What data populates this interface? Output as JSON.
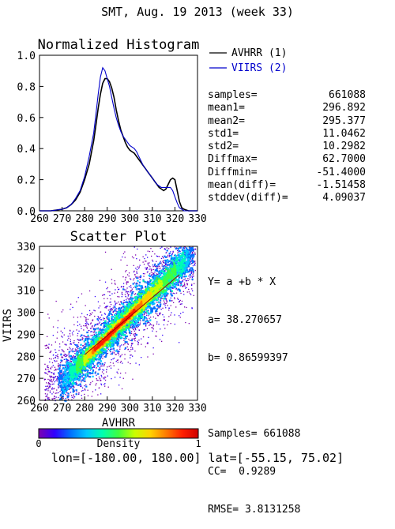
{
  "page_title": "SMT,  Aug. 19 2013 (week 33)",
  "footer": "lon=[-180.00, 180.00] lat=[-55.15, 75.02]",
  "chart_data": [
    {
      "type": "line",
      "title": "Normalized Histogram",
      "xlabel": "",
      "ylabel": "",
      "xlim": [
        260,
        330
      ],
      "ylim": [
        0.0,
        1.0
      ],
      "x_ticks": [
        "260",
        "270",
        "280",
        "290",
        "300",
        "310",
        "320",
        "330"
      ],
      "y_ticks": [
        "0.0",
        "0.2",
        "0.4",
        "0.6",
        "0.8",
        "1.0"
      ],
      "legend": [
        "AVHRR (1)",
        "VIIRS (2)"
      ],
      "series": [
        {
          "name": "AVHRR (1)",
          "color": "#000000",
          "x": [
            260,
            265,
            270,
            272,
            274,
            276,
            278,
            280,
            282,
            284,
            285,
            286,
            287,
            288,
            289,
            290,
            291,
            292,
            293,
            294,
            295,
            296,
            297,
            298,
            299,
            300,
            301,
            302,
            303,
            304,
            305,
            306,
            307,
            308,
            309,
            310,
            311,
            312,
            313,
            314,
            315,
            316,
            317,
            318,
            319,
            320,
            321,
            322,
            323,
            324,
            326,
            328,
            330
          ],
          "y": [
            0.0,
            0.0,
            0.01,
            0.02,
            0.04,
            0.07,
            0.12,
            0.2,
            0.3,
            0.45,
            0.55,
            0.66,
            0.75,
            0.82,
            0.85,
            0.85,
            0.83,
            0.79,
            0.73,
            0.65,
            0.58,
            0.52,
            0.48,
            0.44,
            0.41,
            0.39,
            0.38,
            0.37,
            0.35,
            0.33,
            0.31,
            0.29,
            0.27,
            0.25,
            0.23,
            0.21,
            0.19,
            0.17,
            0.15,
            0.14,
            0.13,
            0.14,
            0.17,
            0.2,
            0.21,
            0.2,
            0.13,
            0.06,
            0.02,
            0.01,
            0.0,
            0.0,
            0.0
          ]
        },
        {
          "name": "VIIRS (2)",
          "color": "#0000cc",
          "x": [
            260,
            265,
            270,
            272,
            274,
            276,
            278,
            280,
            282,
            284,
            285,
            286,
            287,
            288,
            289,
            290,
            291,
            292,
            293,
            294,
            295,
            296,
            297,
            298,
            299,
            300,
            301,
            302,
            303,
            304,
            305,
            306,
            307,
            308,
            309,
            310,
            311,
            312,
            313,
            314,
            315,
            316,
            317,
            318,
            319,
            320,
            321,
            322,
            323,
            324,
            326,
            328,
            330
          ],
          "y": [
            0.0,
            0.0,
            0.01,
            0.02,
            0.04,
            0.08,
            0.13,
            0.22,
            0.35,
            0.5,
            0.62,
            0.75,
            0.86,
            0.92,
            0.9,
            0.85,
            0.8,
            0.73,
            0.66,
            0.6,
            0.55,
            0.51,
            0.48,
            0.46,
            0.44,
            0.42,
            0.41,
            0.4,
            0.38,
            0.35,
            0.32,
            0.29,
            0.27,
            0.25,
            0.23,
            0.21,
            0.19,
            0.17,
            0.16,
            0.15,
            0.15,
            0.15,
            0.15,
            0.15,
            0.13,
            0.09,
            0.05,
            0.02,
            0.01,
            0.0,
            0.0,
            0.0,
            0.0
          ]
        }
      ]
    },
    {
      "type": "scatter",
      "title": "Scatter Plot",
      "xlabel": "AVHRR",
      "ylabel": "VIIRS",
      "xlim": [
        260,
        330
      ],
      "ylim": [
        260,
        330
      ],
      "x_ticks": [
        "260",
        "270",
        "280",
        "290",
        "300",
        "310",
        "320",
        "330"
      ],
      "y_ticks": [
        "260",
        "270",
        "280",
        "290",
        "300",
        "310",
        "320",
        "330"
      ],
      "fit_line": {
        "a": 38.270657,
        "b": 0.86599397
      },
      "colorbar": {
        "label": "Density",
        "min": "0",
        "max": "1",
        "colors": [
          "#ffffff",
          "#7b00b0",
          "#3000ff",
          "#0070ff",
          "#00c8ff",
          "#00ffb0",
          "#40ff40",
          "#c8ff00",
          "#ffd200",
          "#ff7a00",
          "#ff2000",
          "#d00000"
        ]
      },
      "grid": false
    }
  ],
  "stats": [
    {
      "label": "samples=",
      "value": "661088"
    },
    {
      "label": "mean1=",
      "value": "296.892"
    },
    {
      "label": "mean2=",
      "value": "295.377"
    },
    {
      "label": "std1=",
      "value": "11.0462"
    },
    {
      "label": "std2=",
      "value": "10.2982"
    },
    {
      "label": "Diffmax=",
      "value": "62.7000"
    },
    {
      "label": "Diffmin=",
      "value": "-51.4000"
    },
    {
      "label": "mean(diff)=",
      "value": "-1.51458"
    },
    {
      "label": "stddev(diff)=",
      "value": "4.09037"
    }
  ],
  "fit_text": {
    "eq": "Y= a +b * X",
    "a": "a= 38.270657",
    "b": "b= 0.86599397",
    "samples": "Samples= 661088",
    "cc": "CC=  0.9289",
    "rmse": "RMSE= 3.8131258"
  }
}
